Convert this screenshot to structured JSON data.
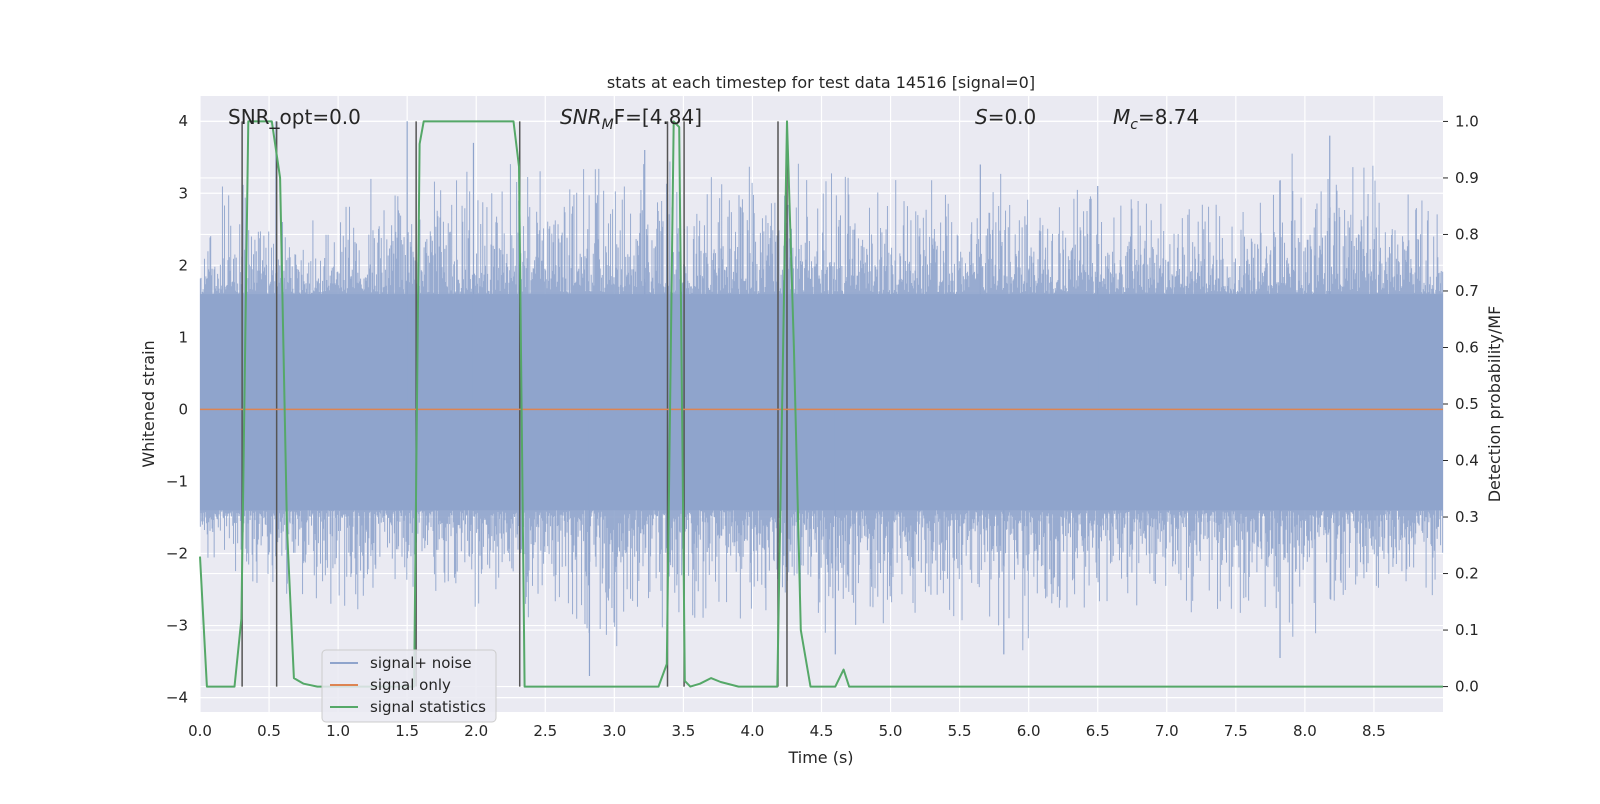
{
  "chart_data": {
    "type": "line",
    "title": "stats at each timestep for test data 14516 [signal=0]",
    "xlabel": "Time (s)",
    "ylabel_left": "Whitened strain",
    "ylabel_right": "Detection probability/MF",
    "xlim": [
      0.0,
      9.0
    ],
    "ylim_left": [
      -4.2,
      4.35
    ],
    "ylim_right": [
      -0.045,
      1.045
    ],
    "grid": true,
    "legend_position": "lower-left",
    "x_ticks": [
      0.0,
      0.5,
      1.0,
      1.5,
      2.0,
      2.5,
      3.0,
      3.5,
      4.0,
      4.5,
      5.0,
      5.5,
      6.0,
      6.5,
      7.0,
      7.5,
      8.0,
      8.5
    ],
    "x_tick_labels": [
      "0.0",
      "0.5",
      "1.0",
      "1.5",
      "2.0",
      "2.5",
      "3.0",
      "3.5",
      "4.0",
      "4.5",
      "5.0",
      "5.5",
      "6.0",
      "6.5",
      "7.0",
      "7.5",
      "8.0",
      "8.5"
    ],
    "y_left_ticks": [
      4,
      3,
      2,
      1,
      0,
      -1,
      -2,
      -3,
      -4
    ],
    "y_left_tick_labels": [
      "4",
      "3",
      "2",
      "1",
      "0",
      "−1",
      "−2",
      "−3",
      "−4"
    ],
    "y_right_ticks": [
      1.0,
      0.9,
      0.8,
      0.7,
      0.6,
      0.5,
      0.4,
      0.3,
      0.2,
      0.1,
      0.0
    ],
    "y_right_tick_labels": [
      "1.0",
      "0.9",
      "0.8",
      "0.7",
      "0.6",
      "0.5",
      "0.4",
      "0.3",
      "0.2",
      "0.1",
      "0.0"
    ],
    "annotations": {
      "snr_opt": "SNR_opt=0.0",
      "snr_mf_main": "SNR",
      "snr_mf_sub": "M",
      "snr_mf_rest": "F=[4.84]",
      "s_main": "S",
      "s_rest": "=0.0",
      "mc_main": "M",
      "mc_sub": "c",
      "mc_rest": "=8.74"
    },
    "legend": [
      "signal+ noise",
      "signal only",
      "signal statistics"
    ],
    "colors": {
      "noise": "#8fa4cc",
      "signal_only": "#dd8452",
      "statistics": "#55a868",
      "vlines": "#555555",
      "background": "#eaeaf2",
      "grid": "#ffffff"
    },
    "series": [
      {
        "name": "signal+ noise",
        "axis": "left",
        "style": "dense-noise",
        "envelope": {
          "x": [
            0.0,
            0.5,
            1.0,
            1.5,
            2.0,
            2.5,
            3.0,
            3.5,
            4.0,
            4.5,
            5.0,
            5.5,
            6.0,
            6.5,
            7.0,
            7.5,
            8.0,
            8.5,
            9.0
          ],
          "upper": [
            3.3,
            3.3,
            3.0,
            4.0,
            3.5,
            3.6,
            3.8,
            3.7,
            3.7,
            3.5,
            3.4,
            3.4,
            3.5,
            3.3,
            3.3,
            3.2,
            3.8,
            3.6,
            3.0
          ],
          "lower": [
            -2.4,
            -2.5,
            -3.0,
            -2.5,
            -3.0,
            -3.0,
            -3.7,
            -3.0,
            -3.2,
            -3.4,
            -3.1,
            -3.1,
            -3.4,
            -3.0,
            -3.0,
            -3.0,
            -3.4,
            -3.0,
            -2.8
          ]
        },
        "spikes": [
          {
            "x": 0.55,
            "y": 4.0
          },
          {
            "x": 1.5,
            "y": 4.0
          },
          {
            "x": 1.98,
            "y": 3.7
          },
          {
            "x": 2.82,
            "y": -3.7
          },
          {
            "x": 3.22,
            "y": 3.6
          },
          {
            "x": 4.6,
            "y": -3.4
          },
          {
            "x": 5.65,
            "y": 3.4
          },
          {
            "x": 6.5,
            "y": 3.1
          },
          {
            "x": 8.18,
            "y": 3.8
          },
          {
            "x": 7.82,
            "y": -3.45
          },
          {
            "x": 5.82,
            "y": -3.4
          }
        ]
      },
      {
        "name": "signal only",
        "axis": "left",
        "x": [
          0.0,
          9.0
        ],
        "y": [
          0.0,
          0.0
        ]
      },
      {
        "name": "signal statistics",
        "axis": "right",
        "x": [
          0.0,
          0.05,
          0.25,
          0.3,
          0.35,
          0.38,
          0.52,
          0.58,
          0.63,
          0.68,
          0.75,
          0.85,
          1.55,
          1.59,
          1.62,
          2.27,
          2.31,
          2.35,
          2.4,
          3.32,
          3.38,
          3.43,
          3.47,
          3.51,
          3.55,
          3.62,
          3.7,
          3.77,
          3.9,
          4.0,
          4.1,
          4.18,
          4.25,
          4.3,
          4.35,
          4.42,
          4.6,
          4.66,
          4.7,
          9.0
        ],
        "y": [
          0.23,
          0.0,
          0.0,
          0.12,
          1.0,
          1.0,
          1.0,
          0.9,
          0.28,
          0.015,
          0.005,
          0.0,
          0.0,
          0.96,
          1.0,
          1.0,
          0.92,
          0.0,
          0.0,
          0.0,
          0.04,
          1.0,
          0.99,
          0.01,
          0.0,
          0.005,
          0.015,
          0.008,
          0.0,
          0.0,
          0.0,
          0.0,
          1.0,
          0.6,
          0.1,
          0.0,
          0.0,
          0.03,
          0.0,
          0.0
        ]
      }
    ],
    "vertical_lines_x": [
      0.305,
      0.555,
      1.565,
      2.315,
      3.385,
      3.505,
      4.185,
      4.25
    ]
  }
}
